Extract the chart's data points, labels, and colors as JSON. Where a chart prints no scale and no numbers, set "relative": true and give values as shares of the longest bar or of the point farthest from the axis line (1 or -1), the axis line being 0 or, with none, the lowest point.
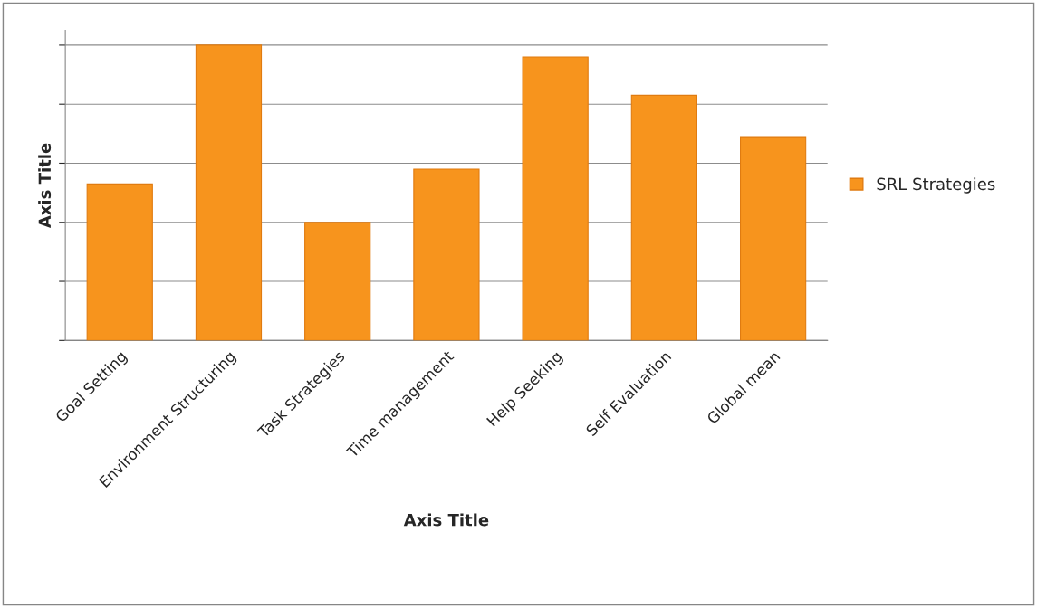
{
  "chart_data": {
    "type": "bar",
    "xlabel": "Axis Title",
    "ylabel": "Axis Title",
    "categories": [
      "Goal Setting",
      "Environment Structuring",
      "Task Strategies",
      "Time management",
      "Help Seeking",
      "Self Evaluation",
      "Global mean"
    ],
    "series": [
      {
        "name": "SRL Strategies",
        "color": "#f7941d",
        "values": [
          0.53,
          1,
          0.4,
          0.58,
          0.96,
          0.83,
          0.69
        ]
      }
    ],
    "relative": true,
    "grid": "y",
    "legend": "right"
  }
}
